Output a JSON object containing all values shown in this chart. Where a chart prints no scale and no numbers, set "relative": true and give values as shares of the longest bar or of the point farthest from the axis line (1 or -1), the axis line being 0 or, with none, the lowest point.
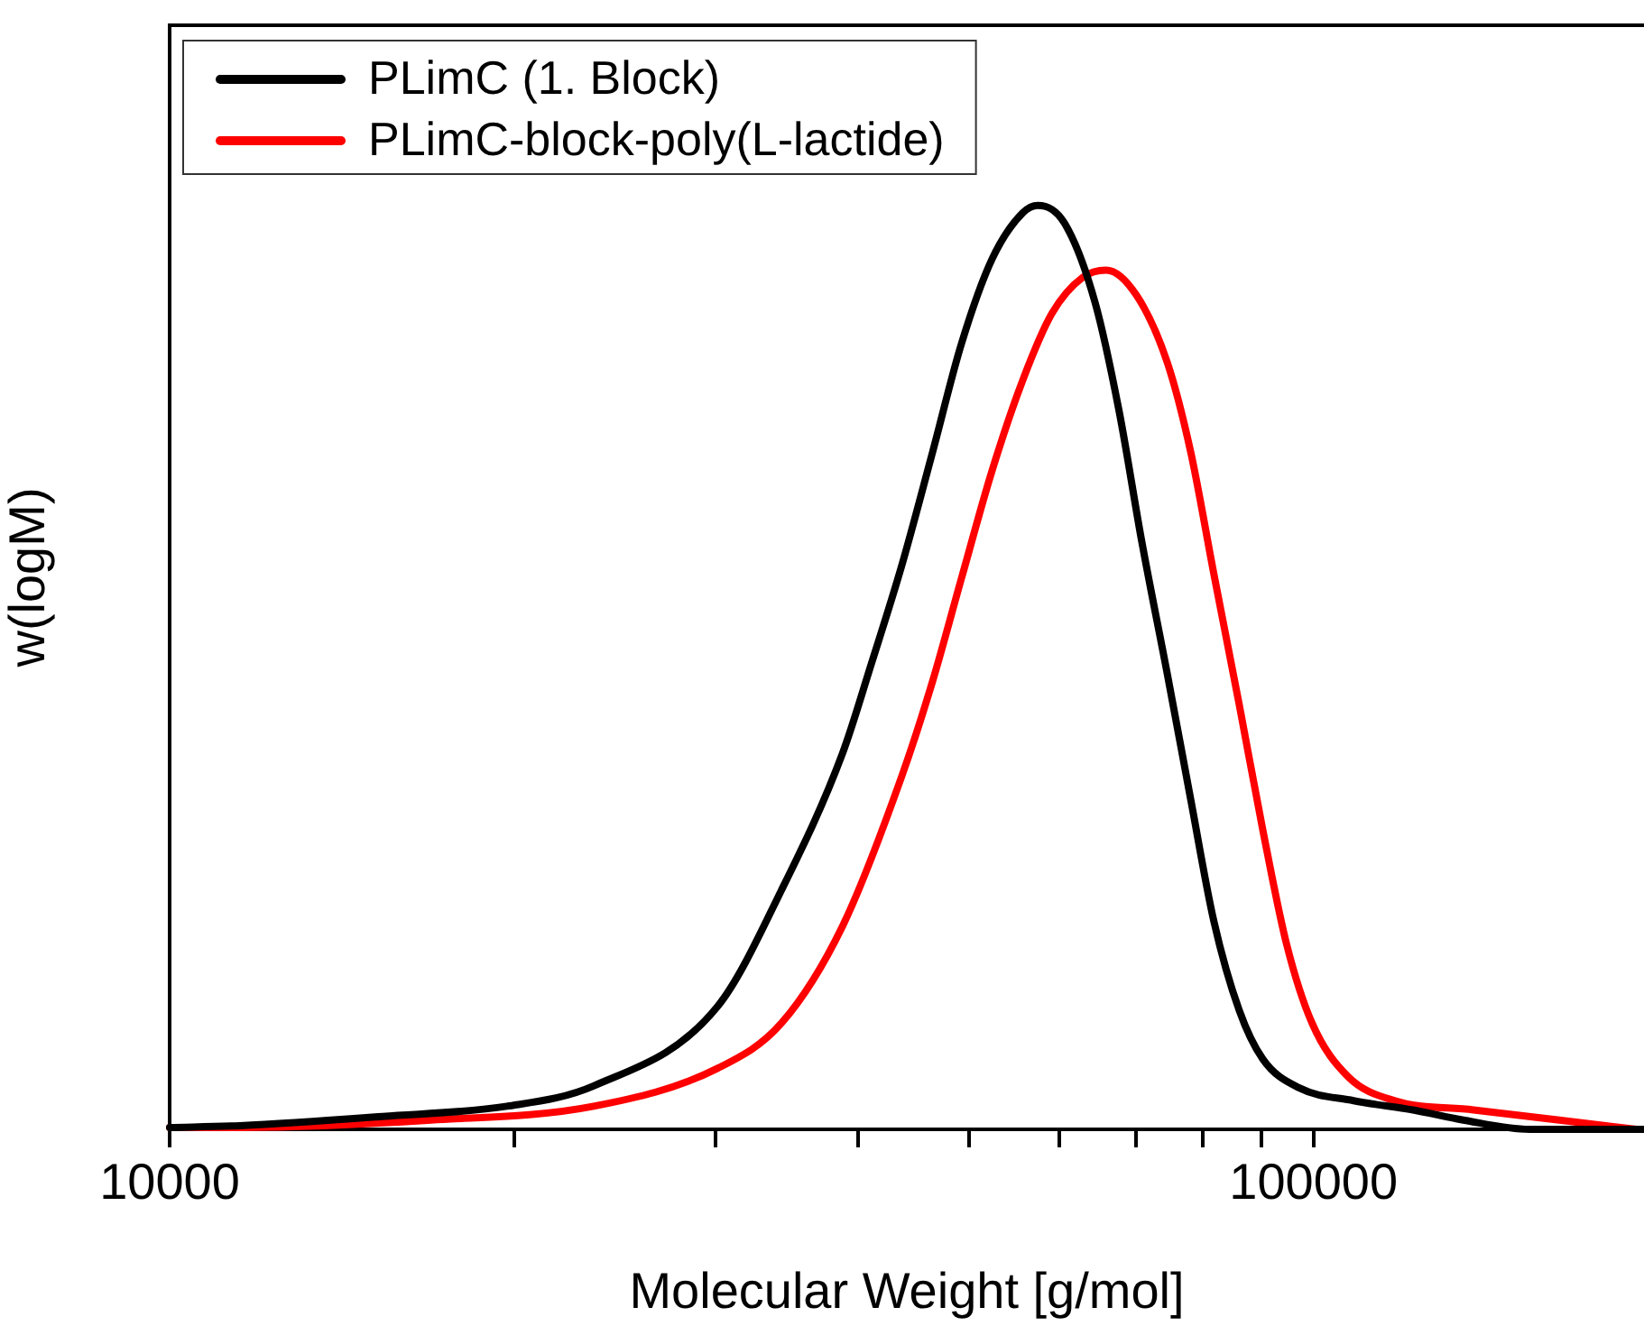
{
  "chart_data": {
    "type": "line",
    "xlabel": "Molecular Weight [g/mol]",
    "ylabel": "w(logM)",
    "relative": true,
    "log": "x",
    "grid": false,
    "legend": "top left",
    "xlim": [
      10000,
      194500
    ],
    "xticks": [
      10000,
      {
        "value": 20000,
        "label": null
      },
      {
        "value": 30000,
        "label": null
      },
      {
        "value": 40000,
        "label": null
      },
      {
        "value": 50000,
        "label": null
      },
      {
        "value": 60000,
        "label": null
      },
      {
        "value": 70000,
        "label": null
      },
      {
        "value": 80000,
        "label": null
      },
      {
        "value": 90000,
        "label": null
      },
      100000
    ],
    "series": [
      {
        "name": "PLimC (1. Block)",
        "color": "#000000",
        "x": [
          10000,
          11520,
          15350,
          19720,
          23480,
          30130,
          34270,
          38750,
          41090,
          43650,
          46450,
          49220,
          52360,
          55700,
          57410,
          60560,
          64420,
          67600,
          70800,
          74500,
          78100,
          81800,
          86100,
          90300,
          97100,
          108400,
          122200,
          135200,
          154500,
          194500
        ],
        "values": [
          0.002,
          0.004,
          0.014,
          0.025,
          0.047,
          0.133,
          0.259,
          0.407,
          0.505,
          0.61,
          0.733,
          0.85,
          0.942,
          0.992,
          1,
          0.981,
          0.895,
          0.778,
          0.635,
          0.493,
          0.357,
          0.226,
          0.129,
          0.076,
          0.045,
          0.031,
          0.021,
          0.01,
          0,
          0
        ]
      },
      {
        "name": "PLimC-block-poly(L-lactide)",
        "color": "#ff0000",
        "x": [
          10000,
          11520,
          16930,
          23480,
          30130,
          34270,
          38750,
          43650,
          46450,
          49220,
          52360,
          55700,
          59060,
          62820,
          65870,
          70000,
          74500,
          78100,
          81800,
          86100,
          90300,
          94700,
          99700,
          107200,
          117800,
          138000,
          164000,
          191500
        ],
        "values": [
          0.002,
          0.002,
          0.01,
          0.025,
          0.066,
          0.115,
          0.22,
          0.382,
          0.485,
          0.596,
          0.713,
          0.811,
          0.883,
          0.922,
          0.93,
          0.903,
          0.83,
          0.733,
          0.602,
          0.46,
          0.324,
          0.201,
          0.115,
          0.057,
          0.031,
          0.021,
          0.01,
          0
        ]
      }
    ]
  }
}
